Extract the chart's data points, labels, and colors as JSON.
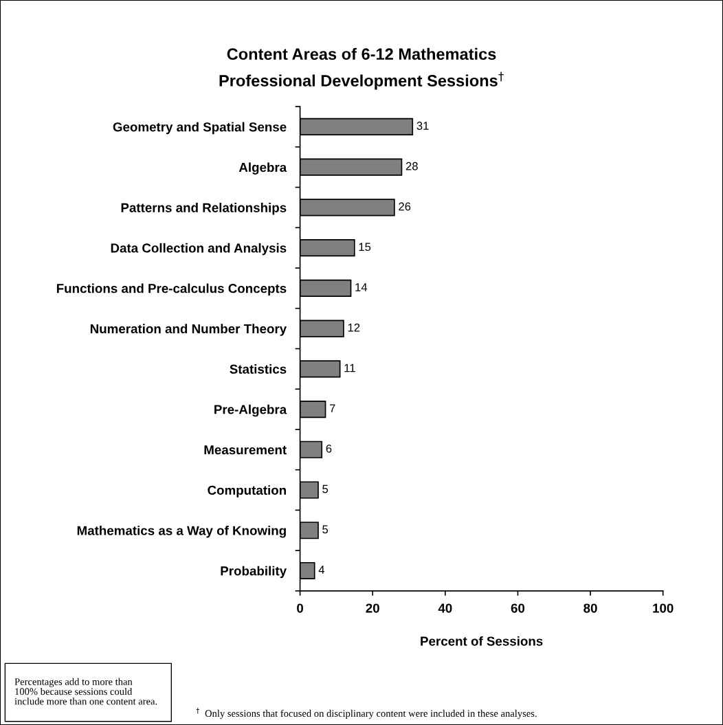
{
  "chart_data": {
    "type": "bar",
    "orientation": "horizontal",
    "title": "Content Areas of 6-12 Mathematics\nProfessional Development Sessions$^{†}$",
    "xlabel": "Percent of Sessions",
    "categories": [
      "Geometry and Spatial Sense",
      "Algebra",
      "Patterns and Relationships",
      "Data Collection and Analysis",
      "Functions and Pre-calculus Concepts",
      "Numeration and Number Theory",
      "Statistics",
      "Pre-Algebra",
      "Measurement",
      "Computation",
      "Mathematics as a Way of Knowing",
      "Probability"
    ],
    "values": [
      31,
      28,
      26,
      15,
      14,
      12,
      11,
      7,
      6,
      5,
      5,
      4
    ],
    "color": "#808080",
    "xlim": [
      0,
      100
    ],
    "xticks": [
      0,
      20,
      40,
      60,
      80,
      100
    ],
    "data_labels": true,
    "grid": false,
    "annotations": [
      "Percentages add to more than\n100% because sessions could\ninclude more than one content area.",
      "$^{†}$  Only sessions that focused on disciplinary content were included in these analyses."
    ]
  }
}
